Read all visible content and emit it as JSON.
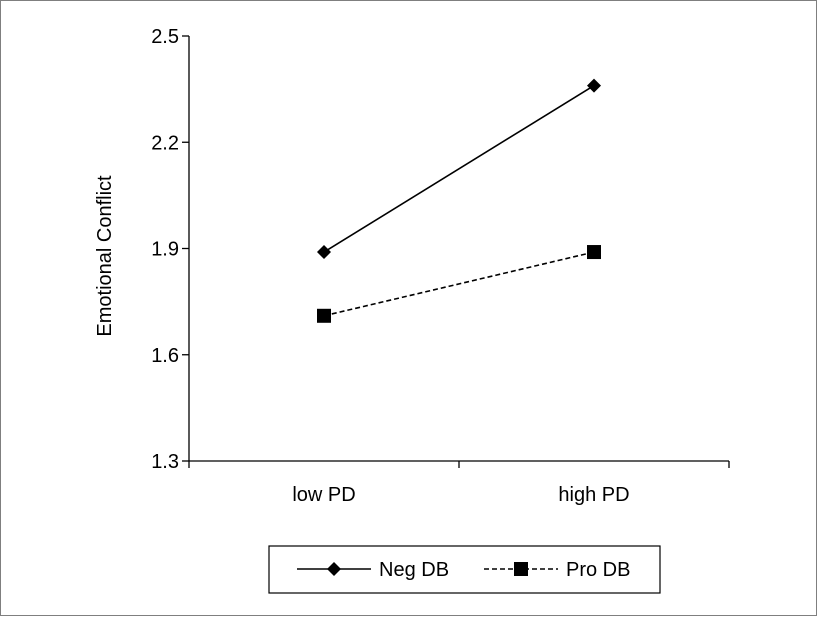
{
  "chart_data": {
    "type": "line",
    "title": "",
    "xlabel": "",
    "ylabel": "Emotional Conflict",
    "categories": [
      "low PD",
      "high PD"
    ],
    "ylim": [
      1.3,
      2.5
    ],
    "yticks": [
      "1.3",
      "1.6",
      "1.9",
      "2.2",
      "2.5"
    ],
    "grid": false,
    "legend_position": "bottom",
    "series": [
      {
        "name": "Neg DB",
        "values": [
          1.89,
          2.36
        ],
        "marker": "diamond",
        "line_style": "solid",
        "color": "#000000"
      },
      {
        "name": "Pro DB",
        "values": [
          1.71,
          1.89
        ],
        "marker": "square",
        "line_style": "dashed",
        "color": "#000000"
      }
    ]
  }
}
